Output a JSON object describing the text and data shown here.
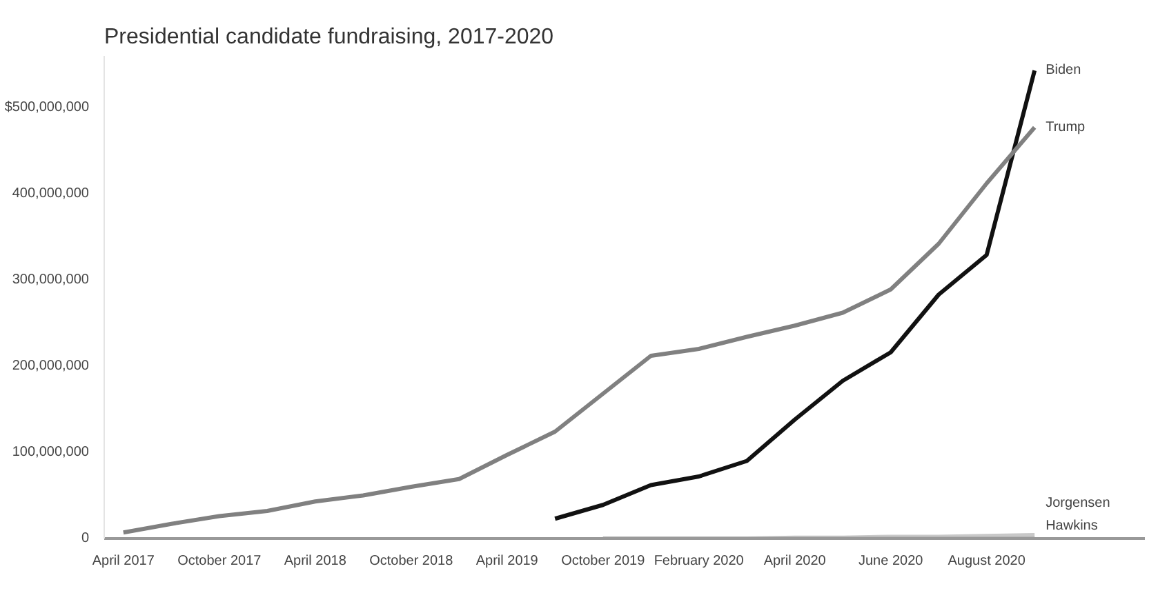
{
  "chart_data": {
    "type": "line",
    "title": "Presidential candidate fundraising, 2017-2020",
    "categories": [
      "April 2017",
      null,
      "October 2017",
      null,
      "April 2018",
      null,
      "October 2018",
      null,
      "April 2019",
      null,
      "October 2019",
      null,
      "February 2020",
      null,
      "April 2020",
      null,
      "June 2020",
      null,
      "August 2020",
      null
    ],
    "series": [
      {
        "name": "Biden",
        "color": "#111111",
        "values": [
          null,
          null,
          null,
          null,
          null,
          null,
          null,
          null,
          null,
          23000000,
          39000000,
          62000000,
          72000000,
          90000000,
          138000000,
          183000000,
          216000000,
          283000000,
          329000000,
          543000000
        ]
      },
      {
        "name": "Trump",
        "color": "#808080",
        "values": [
          7000000,
          17000000,
          26000000,
          32000000,
          43000000,
          50000000,
          60000000,
          69000000,
          97000000,
          124000000,
          168000000,
          212000000,
          220000000,
          234000000,
          247000000,
          262000000,
          289000000,
          342000000,
          412000000,
          477000000
        ]
      },
      {
        "name": "Jorgensen",
        "color": "#c8c8c8",
        "values": [
          null,
          null,
          null,
          null,
          null,
          null,
          null,
          null,
          null,
          null,
          null,
          null,
          0,
          0,
          1000000,
          1000000,
          2000000,
          2000000,
          3000000,
          4000000
        ]
      },
      {
        "name": "Hawkins",
        "color": "#b4b4b4",
        "values": [
          null,
          null,
          null,
          null,
          null,
          null,
          null,
          null,
          null,
          null,
          0,
          0,
          0,
          0,
          0,
          0,
          0,
          0,
          0,
          0
        ]
      }
    ],
    "ylim": [
      0,
      560000000
    ],
    "yticks": [
      0,
      {
        "value": 100000000,
        "label": "100,000,000"
      },
      {
        "value": 200000000,
        "label": "200,000,000"
      },
      {
        "value": 300000000,
        "label": "300,000,000"
      },
      {
        "value": 400000000,
        "label": "400,000,000"
      },
      {
        "value": 500000000,
        "label": "$500,000,000"
      }
    ]
  }
}
